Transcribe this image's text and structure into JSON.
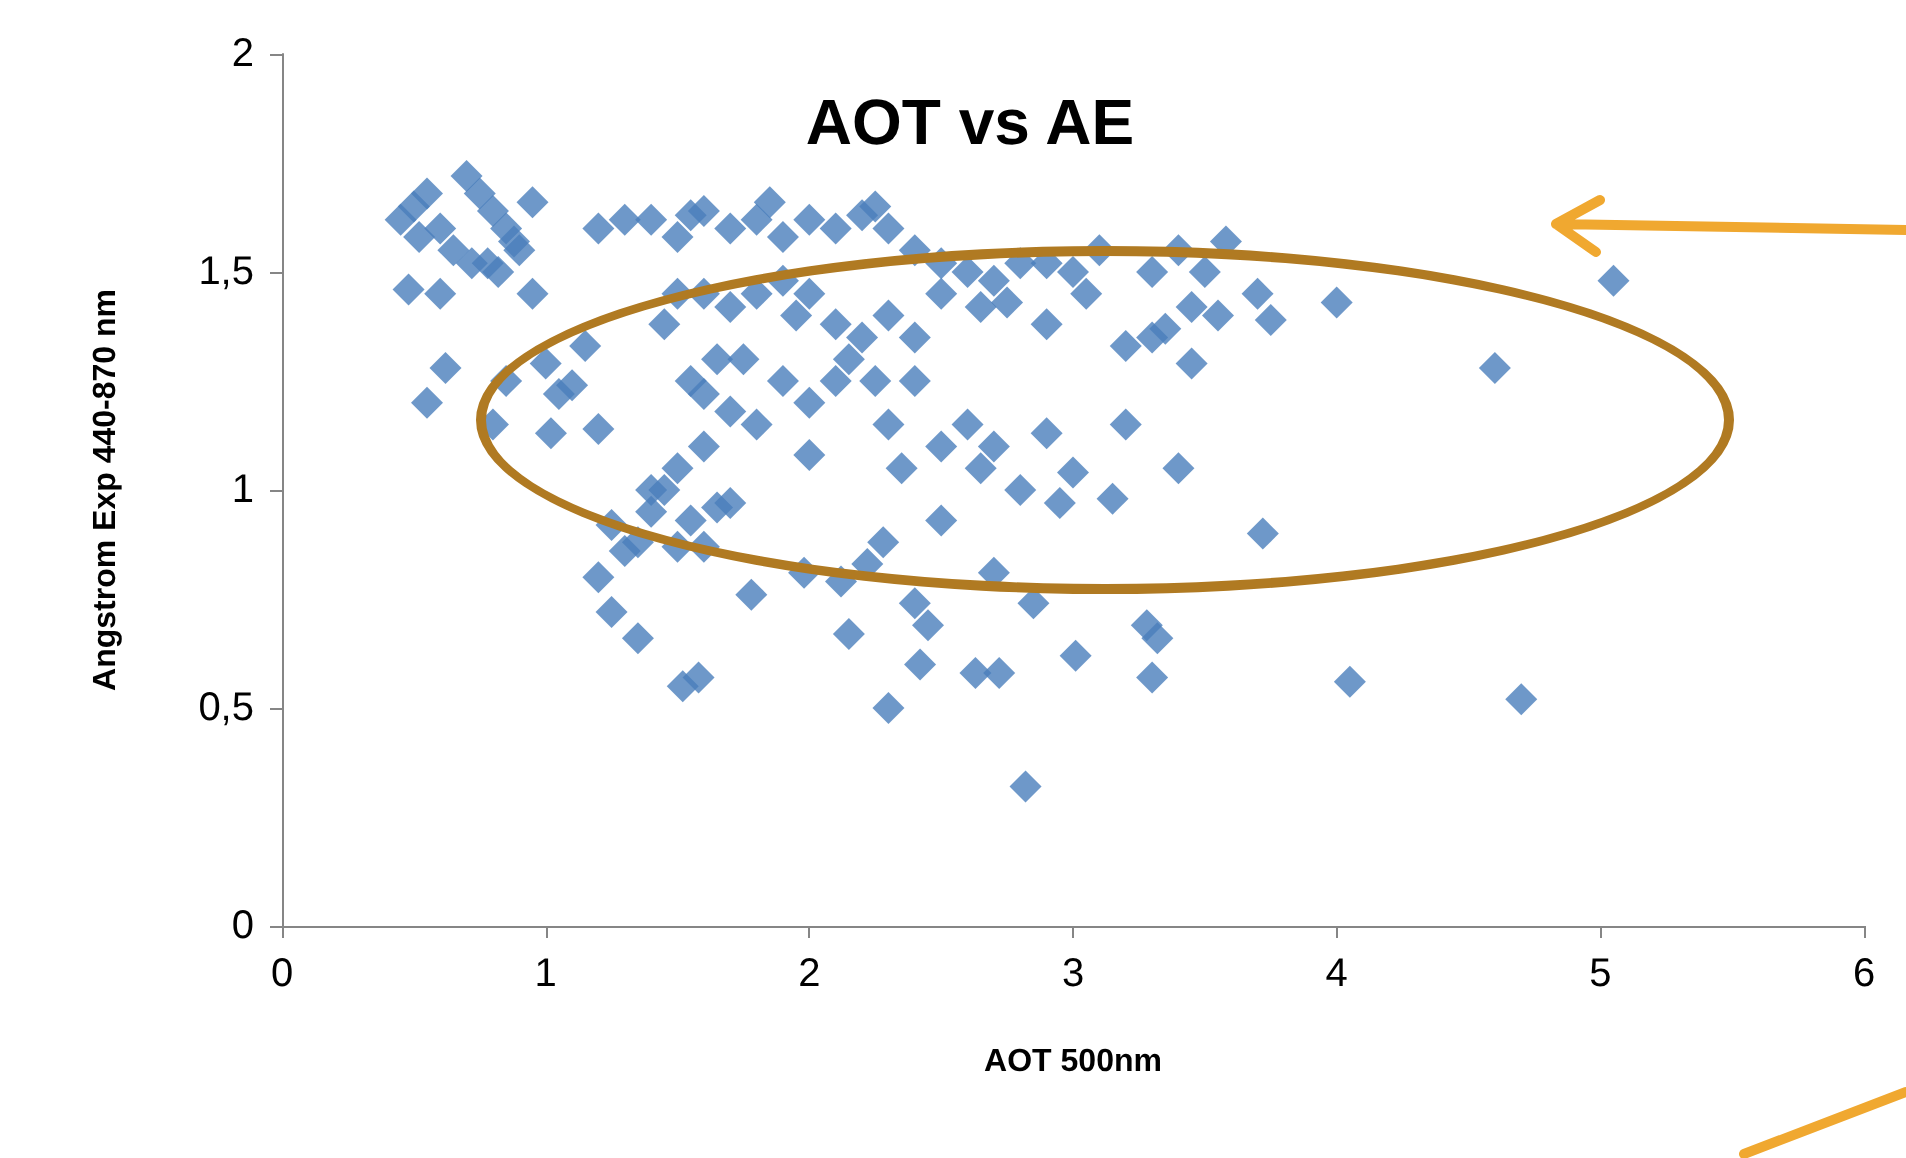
{
  "chart_data": {
    "type": "scatter",
    "title": "AOT vs AE",
    "xlabel": "AOT 500nm",
    "ylabel": "Angstrom Exp 440-870 nm",
    "marker": "diamond",
    "grid": false,
    "xlim": [
      0,
      6
    ],
    "xticks": [
      0,
      1,
      2,
      3,
      4,
      5,
      6
    ],
    "ylim": [
      0,
      2
    ],
    "yticks": [
      0,
      {
        "value": 0.5,
        "label": "0,5"
      },
      1,
      {
        "value": 1.5,
        "label": "1,5"
      },
      2
    ],
    "series": [
      {
        "color": "#4a7ebb",
        "x": [
          0.45,
          0.5,
          0.55,
          0.6,
          0.52,
          0.65,
          0.7,
          0.75,
          0.8,
          0.85,
          0.9,
          0.95,
          0.78,
          0.72,
          0.82,
          0.88,
          0.6,
          0.48,
          0.62,
          0.55,
          0.8,
          0.85,
          0.95,
          1.0,
          1.05,
          1.02,
          1.1,
          1.15,
          1.2,
          1.2,
          1.3,
          1.4,
          1.5,
          1.55,
          1.6,
          1.7,
          1.8,
          1.85,
          1.9,
          2.0,
          2.1,
          2.2,
          2.25,
          2.3,
          2.4,
          2.5,
          2.6,
          2.7,
          2.8,
          2.9,
          3.0,
          3.1,
          3.3,
          3.4,
          3.5,
          3.58,
          3.45,
          3.55,
          3.7,
          3.75,
          4.0,
          3.3,
          3.35,
          3.45,
          3.2,
          3.05,
          2.9,
          2.75,
          2.65,
          2.5,
          2.4,
          2.3,
          2.2,
          2.15,
          2.1,
          2.0,
          1.95,
          1.9,
          1.8,
          1.7,
          1.6,
          1.5,
          1.45,
          1.65,
          1.75,
          1.55,
          1.6,
          1.7,
          1.8,
          1.9,
          2.0,
          2.1,
          2.25,
          2.3,
          2.4,
          2.5,
          2.6,
          2.65,
          2.7,
          2.8,
          2.9,
          3.0,
          3.15,
          3.2,
          3.4,
          2.35,
          2.0,
          1.6,
          1.5,
          1.4,
          4.6,
          5.05,
          2.95,
          2.5,
          3.72,
          1.25,
          1.3,
          1.35,
          1.4,
          1.45,
          1.2,
          1.25,
          1.35,
          1.5,
          1.55,
          1.6,
          1.65,
          1.7,
          1.52,
          1.58,
          1.78,
          1.98,
          2.12,
          2.15,
          2.22,
          2.28,
          2.3,
          2.4,
          2.42,
          2.45,
          2.63,
          2.72,
          2.7,
          2.85,
          2.82,
          3.01,
          3.28,
          3.32,
          3.3,
          4.05,
          4.7
        ],
        "values": [
          1.62,
          1.65,
          1.68,
          1.6,
          1.58,
          1.55,
          1.72,
          1.68,
          1.64,
          1.6,
          1.55,
          1.66,
          1.52,
          1.52,
          1.5,
          1.57,
          1.45,
          1.46,
          1.28,
          1.2,
          1.15,
          1.25,
          1.45,
          1.29,
          1.22,
          1.13,
          1.24,
          1.33,
          1.14,
          1.6,
          1.62,
          1.62,
          1.58,
          1.63,
          1.64,
          1.6,
          1.62,
          1.66,
          1.58,
          1.62,
          1.6,
          1.63,
          1.65,
          1.6,
          1.55,
          1.52,
          1.5,
          1.48,
          1.52,
          1.52,
          1.5,
          1.55,
          1.5,
          1.55,
          1.5,
          1.57,
          1.42,
          1.4,
          1.45,
          1.39,
          1.43,
          1.35,
          1.37,
          1.29,
          1.33,
          1.45,
          1.38,
          1.43,
          1.42,
          1.45,
          1.35,
          1.4,
          1.35,
          1.3,
          1.38,
          1.45,
          1.4,
          1.48,
          1.45,
          1.42,
          1.45,
          1.45,
          1.38,
          1.3,
          1.3,
          1.25,
          1.22,
          1.18,
          1.15,
          1.25,
          1.2,
          1.25,
          1.25,
          1.15,
          1.25,
          1.1,
          1.15,
          1.05,
          1.1,
          1.0,
          1.13,
          1.04,
          0.98,
          1.15,
          1.05,
          1.05,
          1.08,
          1.1,
          1.05,
          1.0,
          1.28,
          1.48,
          0.97,
          0.93,
          0.9,
          0.92,
          0.86,
          0.88,
          0.95,
          1.0,
          0.8,
          0.72,
          0.66,
          0.87,
          0.93,
          0.87,
          0.96,
          0.97,
          0.55,
          0.57,
          0.76,
          0.81,
          0.79,
          0.67,
          0.83,
          0.88,
          0.5,
          0.74,
          0.6,
          0.69,
          0.58,
          0.58,
          0.81,
          0.74,
          0.32,
          0.62,
          0.69,
          0.66,
          0.57,
          0.56,
          0.52
        ]
      }
    ]
  }
}
